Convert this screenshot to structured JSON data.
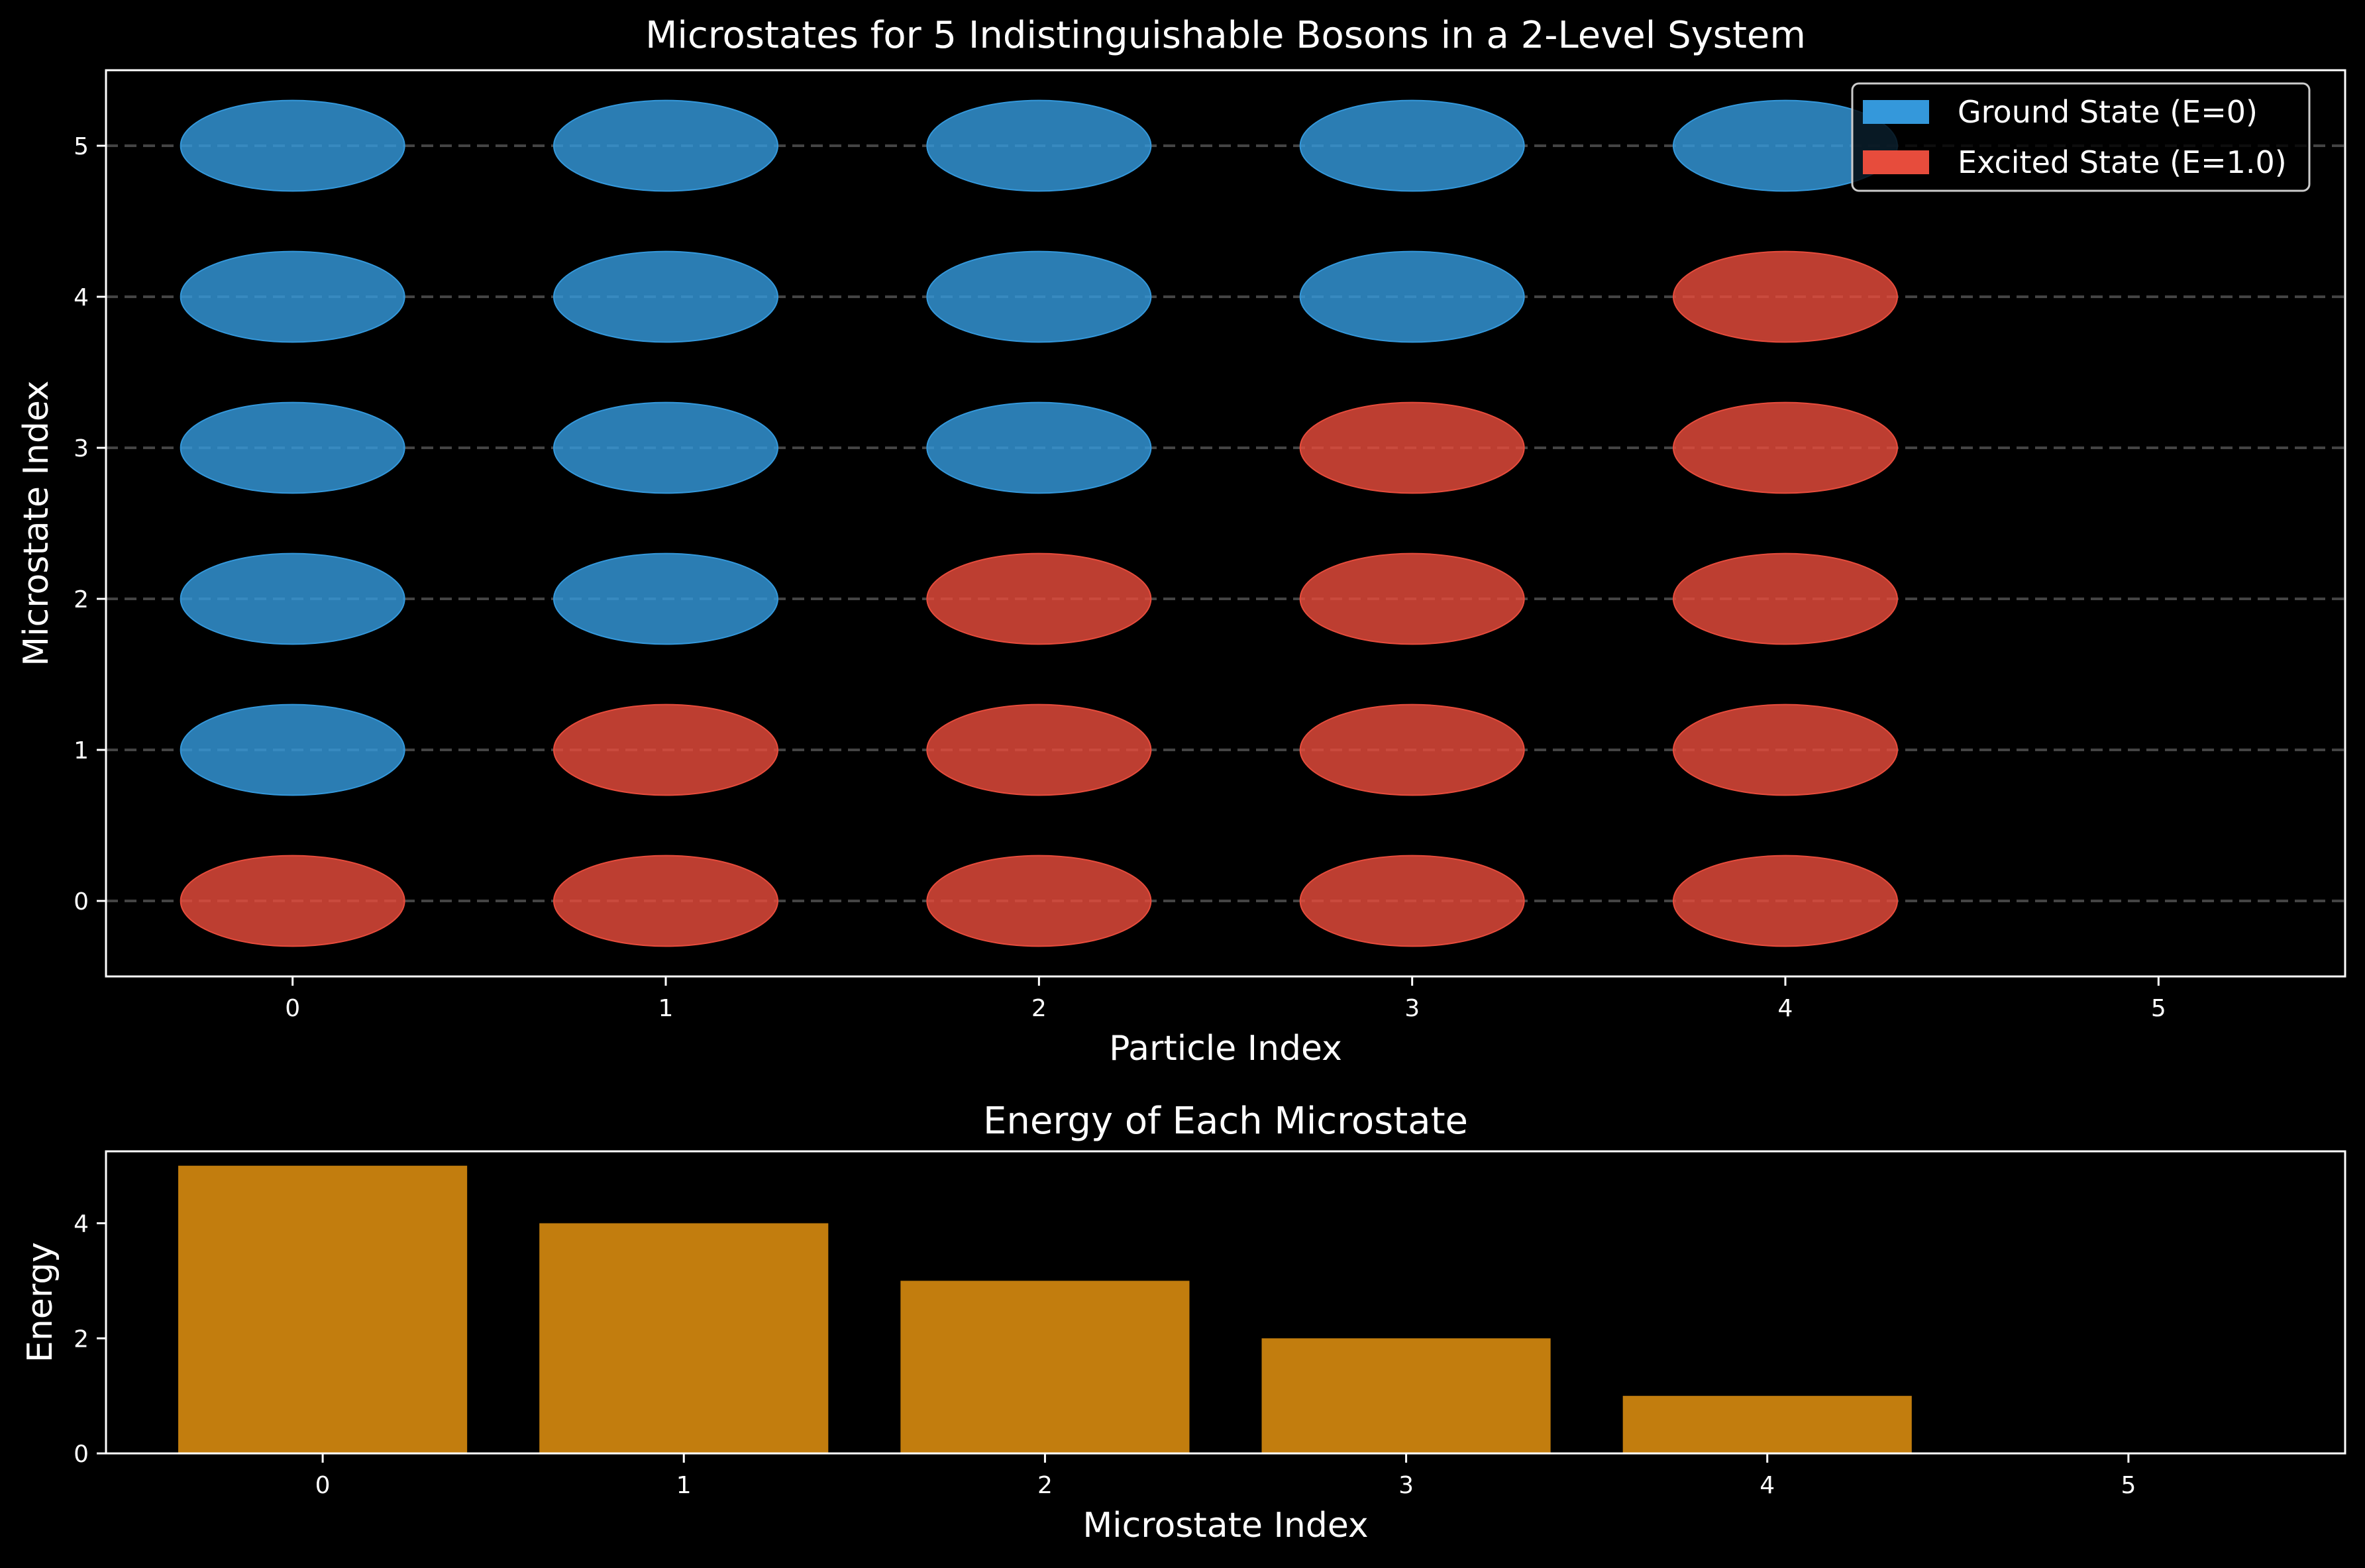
{
  "colors": {
    "background": "#000000",
    "ground": "#3498db",
    "excited": "#e74c3c",
    "bar": "#f39c12",
    "axis": "#ffffff",
    "grid": "#555555"
  },
  "chart_data": [
    {
      "type": "scatter",
      "title": "Microstates for 5 Indistinguishable Bosons in a 2-Level System",
      "xlabel": "Particle Index",
      "ylabel": "Microstate Index",
      "xlim": [
        -0.5,
        5.5
      ],
      "ylim": [
        -0.5,
        5.5
      ],
      "xticks": [
        "0",
        "1",
        "2",
        "3",
        "4",
        "5"
      ],
      "yticks": [
        "0",
        "1",
        "2",
        "3",
        "4",
        "5"
      ],
      "grid": "horizontal dashed",
      "legend": {
        "placement": "top-right",
        "entries": [
          {
            "key": "ground",
            "label": "Ground State (E=0)"
          },
          {
            "key": "excited",
            "label": "Excited State (E=1.0)"
          }
        ]
      },
      "microstates": [
        {
          "microstate": 0,
          "levels": [
            "excited",
            "excited",
            "excited",
            "excited",
            "excited"
          ]
        },
        {
          "microstate": 1,
          "levels": [
            "ground",
            "excited",
            "excited",
            "excited",
            "excited"
          ]
        },
        {
          "microstate": 2,
          "levels": [
            "ground",
            "ground",
            "excited",
            "excited",
            "excited"
          ]
        },
        {
          "microstate": 3,
          "levels": [
            "ground",
            "ground",
            "ground",
            "excited",
            "excited"
          ]
        },
        {
          "microstate": 4,
          "levels": [
            "ground",
            "ground",
            "ground",
            "ground",
            "excited"
          ]
        },
        {
          "microstate": 5,
          "levels": [
            "ground",
            "ground",
            "ground",
            "ground",
            "ground"
          ]
        }
      ]
    },
    {
      "type": "bar",
      "title": "Energy of Each Microstate",
      "xlabel": "Microstate Index",
      "ylabel": "Energy",
      "categories": [
        "0",
        "1",
        "2",
        "3",
        "4",
        "5"
      ],
      "values": [
        5,
        4,
        3,
        2,
        1,
        0
      ],
      "ylim": [
        0,
        5.25
      ],
      "yticks": [
        "0",
        "2",
        "4"
      ]
    }
  ]
}
